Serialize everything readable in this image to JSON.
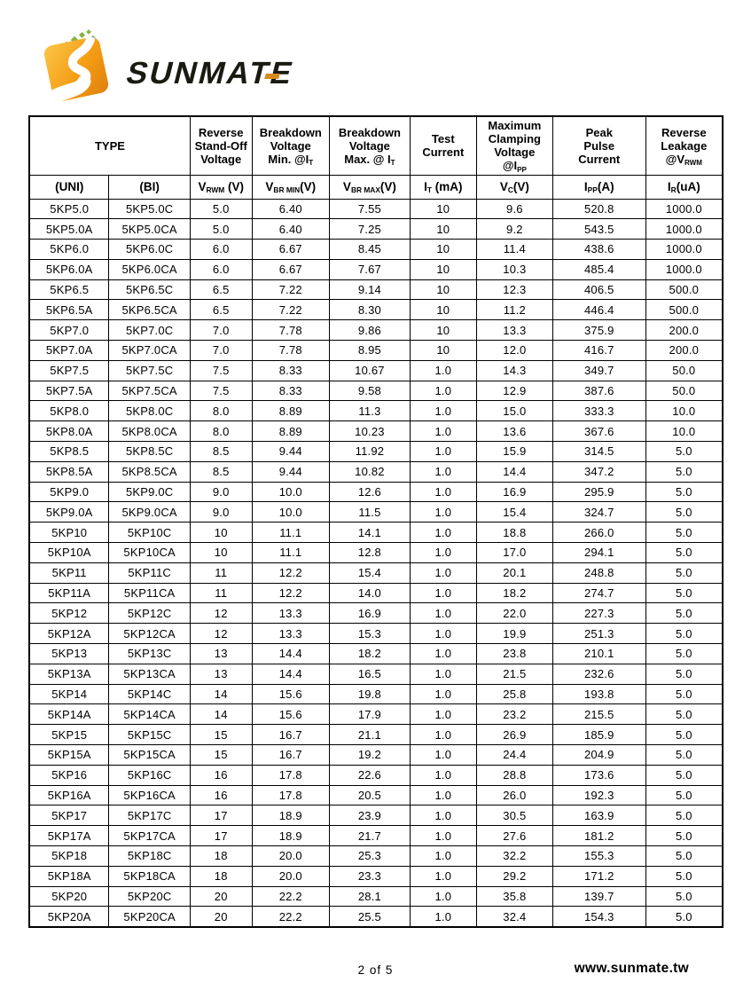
{
  "logo": {
    "wordmark": "SUNMATE",
    "colors": {
      "orange_light": "#FBC648",
      "orange_mid": "#F49D15",
      "orange_dark": "#DF7F0C",
      "swoosh_white": "#FFFFFF",
      "sparkle_green": "#86B440",
      "sparkle_green_dark": "#5F9638",
      "wordmark_black": "#1A1A12",
      "accent_orange": "#D78A1E"
    }
  },
  "table": {
    "header": {
      "type_label": "TYPE",
      "uni_label": "(UNI)",
      "bi_label": "(BI)",
      "cols": [
        {
          "title": "Reverse\nStand-Off\nVoltage",
          "unit": "V~RWM~ (V)"
        },
        {
          "title": "Breakdown\nVoltage\nMin. @I~T~",
          "unit": "V~BR MIN~(V)"
        },
        {
          "title": "Breakdown\nVoltage\nMax. @ I~T~",
          "unit": "V~BR MAX~(V)"
        },
        {
          "title": "Test\nCurrent",
          "unit": "I~T~ (mA)"
        },
        {
          "title": "Maximum\nClamping\nVoltage\n@I~PP~",
          "unit": "V~C~(V)"
        },
        {
          "title": "Peak\nPulse\nCurrent",
          "unit": "I~PP~(A)"
        },
        {
          "title": "Reverse\nLeakage\n@V~RWM~",
          "unit": "I~R~(uA)"
        }
      ]
    },
    "rows": [
      [
        "5KP5.0",
        "5KP5.0C",
        "5.0",
        "6.40",
        "7.55",
        "10",
        "9.6",
        "520.8",
        "1000.0"
      ],
      [
        "5KP5.0A",
        "5KP5.0CA",
        "5.0",
        "6.40",
        "7.25",
        "10",
        "9.2",
        "543.5",
        "1000.0"
      ],
      [
        "5KP6.0",
        "5KP6.0C",
        "6.0",
        "6.67",
        "8.45",
        "10",
        "11.4",
        "438.6",
        "1000.0"
      ],
      [
        "5KP6.0A",
        "5KP6.0CA",
        "6.0",
        "6.67",
        "7.67",
        "10",
        "10.3",
        "485.4",
        "1000.0"
      ],
      [
        "5KP6.5",
        "5KP6.5C",
        "6.5",
        "7.22",
        "9.14",
        "10",
        "12.3",
        "406.5",
        "500.0"
      ],
      [
        "5KP6.5A",
        "5KP6.5CA",
        "6.5",
        "7.22",
        "8.30",
        "10",
        "11.2",
        "446.4",
        "500.0"
      ],
      [
        "5KP7.0",
        "5KP7.0C",
        "7.0",
        "7.78",
        "9.86",
        "10",
        "13.3",
        "375.9",
        "200.0"
      ],
      [
        "5KP7.0A",
        "5KP7.0CA",
        "7.0",
        "7.78",
        "8.95",
        "10",
        "12.0",
        "416.7",
        "200.0"
      ],
      [
        "5KP7.5",
        "5KP7.5C",
        "7.5",
        "8.33",
        "10.67",
        "1.0",
        "14.3",
        "349.7",
        "50.0"
      ],
      [
        "5KP7.5A",
        "5KP7.5CA",
        "7.5",
        "8.33",
        "9.58",
        "1.0",
        "12.9",
        "387.6",
        "50.0"
      ],
      [
        "5KP8.0",
        "5KP8.0C",
        "8.0",
        "8.89",
        "11.3",
        "1.0",
        "15.0",
        "333.3",
        "10.0"
      ],
      [
        "5KP8.0A",
        "5KP8.0CA",
        "8.0",
        "8.89",
        "10.23",
        "1.0",
        "13.6",
        "367.6",
        "10.0"
      ],
      [
        "5KP8.5",
        "5KP8.5C",
        "8.5",
        "9.44",
        "11.92",
        "1.0",
        "15.9",
        "314.5",
        "5.0"
      ],
      [
        "5KP8.5A",
        "5KP8.5CA",
        "8.5",
        "9.44",
        "10.82",
        "1.0",
        "14.4",
        "347.2",
        "5.0"
      ],
      [
        "5KP9.0",
        "5KP9.0C",
        "9.0",
        "10.0",
        "12.6",
        "1.0",
        "16.9",
        "295.9",
        "5.0"
      ],
      [
        "5KP9.0A",
        "5KP9.0CA",
        "9.0",
        "10.0",
        "11.5",
        "1.0",
        "15.4",
        "324.7",
        "5.0"
      ],
      [
        "5KP10",
        "5KP10C",
        "10",
        "11.1",
        "14.1",
        "1.0",
        "18.8",
        "266.0",
        "5.0"
      ],
      [
        "5KP10A",
        "5KP10CA",
        "10",
        "11.1",
        "12.8",
        "1.0",
        "17.0",
        "294.1",
        "5.0"
      ],
      [
        "5KP11",
        "5KP11C",
        "11",
        "12.2",
        "15.4",
        "1.0",
        "20.1",
        "248.8",
        "5.0"
      ],
      [
        "5KP11A",
        "5KP11CA",
        "11",
        "12.2",
        "14.0",
        "1.0",
        "18.2",
        "274.7",
        "5.0"
      ],
      [
        "5KP12",
        "5KP12C",
        "12",
        "13.3",
        "16.9",
        "1.0",
        "22.0",
        "227.3",
        "5.0"
      ],
      [
        "5KP12A",
        "5KP12CA",
        "12",
        "13.3",
        "15.3",
        "1.0",
        "19.9",
        "251.3",
        "5.0"
      ],
      [
        "5KP13",
        "5KP13C",
        "13",
        "14.4",
        "18.2",
        "1.0",
        "23.8",
        "210.1",
        "5.0"
      ],
      [
        "5KP13A",
        "5KP13CA",
        "13",
        "14.4",
        "16.5",
        "1.0",
        "21.5",
        "232.6",
        "5.0"
      ],
      [
        "5KP14",
        "5KP14C",
        "14",
        "15.6",
        "19.8",
        "1.0",
        "25.8",
        "193.8",
        "5.0"
      ],
      [
        "5KP14A",
        "5KP14CA",
        "14",
        "15.6",
        "17.9",
        "1.0",
        "23.2",
        "215.5",
        "5.0"
      ],
      [
        "5KP15",
        "5KP15C",
        "15",
        "16.7",
        "21.1",
        "1.0",
        "26.9",
        "185.9",
        "5.0"
      ],
      [
        "5KP15A",
        "5KP15CA",
        "15",
        "16.7",
        "19.2",
        "1.0",
        "24.4",
        "204.9",
        "5.0"
      ],
      [
        "5KP16",
        "5KP16C",
        "16",
        "17.8",
        "22.6",
        "1.0",
        "28.8",
        "173.6",
        "5.0"
      ],
      [
        "5KP16A",
        "5KP16CA",
        "16",
        "17.8",
        "20.5",
        "1.0",
        "26.0",
        "192.3",
        "5.0"
      ],
      [
        "5KP17",
        "5KP17C",
        "17",
        "18.9",
        "23.9",
        "1.0",
        "30.5",
        "163.9",
        "5.0"
      ],
      [
        "5KP17A",
        "5KP17CA",
        "17",
        "18.9",
        "21.7",
        "1.0",
        "27.6",
        "181.2",
        "5.0"
      ],
      [
        "5KP18",
        "5KP18C",
        "18",
        "20.0",
        "25.3",
        "1.0",
        "32.2",
        "155.3",
        "5.0"
      ],
      [
        "5KP18A",
        "5KP18CA",
        "18",
        "20.0",
        "23.3",
        "1.0",
        "29.2",
        "171.2",
        "5.0"
      ],
      [
        "5KP20",
        "5KP20C",
        "20",
        "22.2",
        "28.1",
        "1.0",
        "35.8",
        "139.7",
        "5.0"
      ],
      [
        "5KP20A",
        "5KP20CA",
        "20",
        "22.2",
        "25.5",
        "1.0",
        "32.4",
        "154.3",
        "5.0"
      ]
    ]
  },
  "footer": {
    "page_indicator": "2 of  5",
    "website": "www.sunmate.tw"
  }
}
